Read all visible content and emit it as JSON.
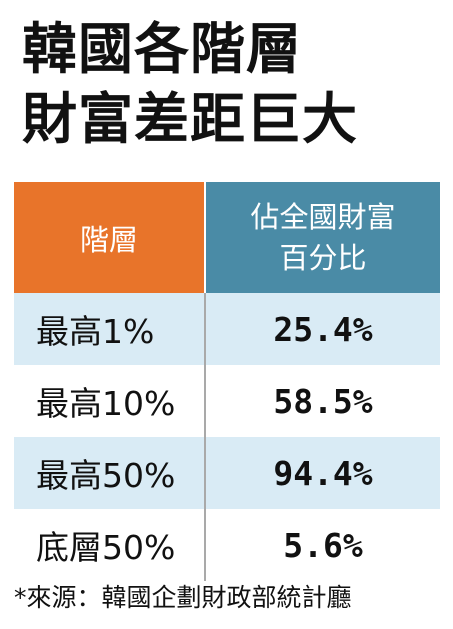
{
  "title": {
    "line1": "韓國各階層",
    "line2": "財富差距巨大"
  },
  "chart_data": {
    "type": "table",
    "columns": [
      "階層",
      "佔全國財富百分比"
    ],
    "header_right_lines": [
      "佔全國財富",
      "百分比"
    ],
    "rows": [
      {
        "label": "最高1%",
        "value": "25.4%"
      },
      {
        "label": "最高10%",
        "value": "58.5%"
      },
      {
        "label": "最高50%",
        "value": "94.4%"
      },
      {
        "label": "底層50%",
        "value": "5.6%"
      }
    ]
  },
  "source": "*來源：韓國企劃財政部統計廳",
  "colors": {
    "header_left": "#e8742a",
    "header_right": "#4a8ba6",
    "row_shade": "#d9ebf5"
  }
}
